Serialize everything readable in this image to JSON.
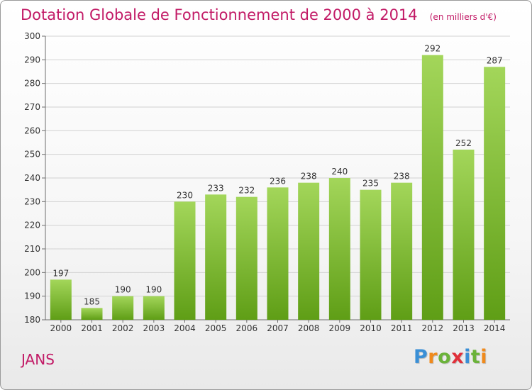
{
  "title": "Dotation Globale de Fonctionnement de 2000 à 2014",
  "subtitle": "(en milliers d'€)",
  "commune": "JANS",
  "logo": {
    "text": "Proxiti",
    "letter_colors": [
      "#3a8fd6",
      "#f08a1c",
      "#6bb33a",
      "#e0303a",
      "#3a8fd6",
      "#6bb33a",
      "#f08a1c"
    ]
  },
  "colors": {
    "bar_top": "#a3d65a",
    "bar_bottom": "#5f9e16",
    "title": "#c21a66",
    "grid": "#d2d2d2",
    "axis": "#6d6d6d"
  },
  "chart_data": {
    "type": "bar",
    "categories": [
      "2000",
      "2001",
      "2002",
      "2003",
      "2004",
      "2005",
      "2006",
      "2007",
      "2008",
      "2009",
      "2010",
      "2011",
      "2012",
      "2013",
      "2014"
    ],
    "values": [
      197,
      185,
      190,
      190,
      230,
      233,
      232,
      236,
      238,
      240,
      235,
      238,
      292,
      252,
      287
    ],
    "ylim": [
      180,
      300
    ],
    "yticks": [
      180,
      190,
      200,
      210,
      220,
      230,
      240,
      250,
      260,
      270,
      280,
      290,
      300
    ],
    "grid": true
  }
}
